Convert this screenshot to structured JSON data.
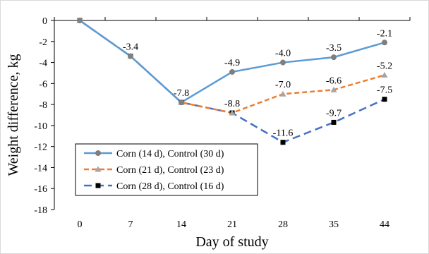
{
  "chart_data": {
    "type": "line",
    "x": [
      0,
      7,
      14,
      21,
      28,
      35,
      44
    ],
    "categories": [
      "0",
      "7",
      "14",
      "21",
      "28",
      "35",
      "44"
    ],
    "xlabel": "Day of study",
    "ylabel": "Weight difference, kg",
    "ylim": [
      -18,
      0
    ],
    "yticks": [
      0,
      -2,
      -4,
      -6,
      -8,
      -10,
      -12,
      -14,
      -16,
      -18
    ],
    "ytick_labels": [
      "0",
      "-2",
      "-4",
      "-6",
      "-8",
      "-10",
      "-12",
      "-14",
      "-16",
      "-18"
    ],
    "grid": false,
    "legend_position": "lower-left",
    "series": [
      {
        "name": "Corn (14 d), Control (30 d)",
        "values": [
          0,
          -3.4,
          -7.8,
          -4.9,
          -4.0,
          -3.5,
          -2.1
        ],
        "color": "#5b9bd5",
        "marker": "circle",
        "marker_color": "#7f7f7f",
        "dash": "solid",
        "labels": [
          null,
          null,
          null,
          "-4.9",
          "-4.0",
          "-3.5",
          "-2.1"
        ]
      },
      {
        "name": "Corn (21 d), Control (23 d)",
        "values": [
          0,
          -3.4,
          -7.8,
          -8.8,
          -7.0,
          -6.6,
          -5.2
        ],
        "color": "#ed7d31",
        "marker": "triangle",
        "marker_color": "#a5a5a5",
        "dash": "dashed",
        "labels": [
          null,
          "-3.4",
          "-7.8",
          "-8.8",
          "-7.0",
          "-6.6",
          "-5.2"
        ]
      },
      {
        "name": "Corn (28 d), Control (16 d)",
        "values": [
          0,
          -3.4,
          -7.8,
          -8.8,
          -11.6,
          -9.7,
          -7.5
        ],
        "color": "#4472c4",
        "marker": "square",
        "marker_color": "#000000",
        "dash": "longdash",
        "labels": [
          null,
          null,
          null,
          null,
          "-11.6",
          "-9.7",
          "-7.5"
        ]
      }
    ]
  }
}
